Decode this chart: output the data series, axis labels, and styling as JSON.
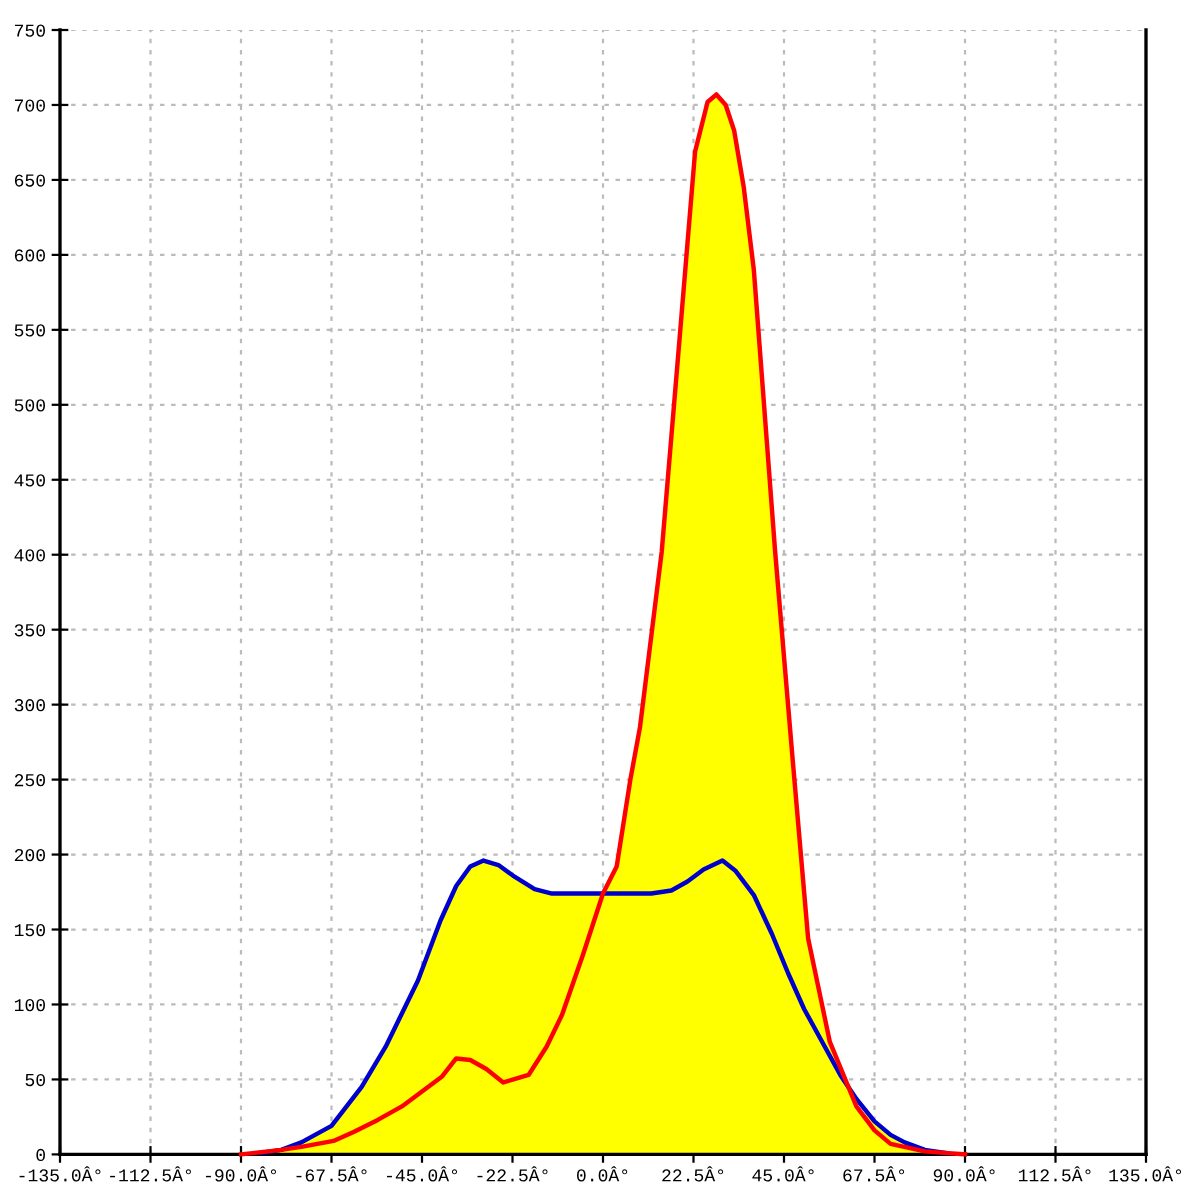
{
  "chart_data": {
    "type": "area",
    "series": [
      {
        "color": "#ffff00",
        "x": [
          -135,
          -90,
          -85,
          -80,
          -75,
          -67.5,
          -60,
          -54,
          -46,
          -40.4,
          -36.5,
          -33,
          -29.7,
          -26,
          -22.4,
          -17,
          -12.7,
          0,
          3.4,
          6.8,
          9.2,
          14.6,
          19,
          22.9,
          26,
          28.2,
          30.5,
          32.6,
          35,
          37.5,
          42.8,
          47.2,
          51,
          56.4,
          63,
          67.5,
          71.5,
          75,
          80,
          85,
          90,
          135
        ],
        "values": [
          0,
          0,
          1,
          3,
          8,
          19,
          45,
          72,
          116,
          156,
          179,
          192,
          196,
          193,
          186,
          177,
          174,
          174,
          192,
          250,
          285,
          402,
          543,
          669,
          702,
          707,
          700,
          683,
          645,
          590,
          402,
          262,
          144,
          75,
          32,
          22,
          13,
          8,
          3,
          1,
          0,
          0
        ]
      },
      {
        "type": "line",
        "color": "#0000cc",
        "x": [
          -85,
          -80,
          -75,
          -67.5,
          -60,
          -54,
          -46,
          -40.4,
          -36.5,
          -33,
          -29.7,
          -26,
          -22.4,
          -17,
          -12.7,
          0,
          12,
          17,
          21,
          25,
          29.7,
          33,
          37.5,
          42,
          46,
          50,
          54.5,
          59,
          63,
          67.5,
          71.5,
          75,
          80,
          85
        ],
        "values": [
          1,
          3,
          8,
          19,
          45,
          72,
          116,
          156,
          179,
          192,
          196,
          193,
          186,
          177,
          174,
          174,
          174,
          176,
          182,
          190,
          196,
          189,
          173,
          147,
          121,
          97,
          75,
          53,
          37,
          22,
          13,
          8,
          3,
          1
        ]
      },
      {
        "type": "line",
        "color": "#ff0000",
        "x": [
          -90,
          -86.6,
          -80,
          -75,
          -67,
          -62,
          -56,
          -50,
          -46,
          -40,
          -36.5,
          -33,
          -29,
          -24.8,
          -21,
          -18.5,
          -14,
          -10.2,
          -5,
          0,
          3.4,
          6.8,
          9.2,
          14.6,
          19,
          22.9,
          26,
          28.2,
          30.5,
          32.6,
          35,
          37.5,
          42.8,
          47.2,
          51,
          56.4,
          63,
          67.5,
          71.5,
          80,
          85,
          90
        ],
        "values": [
          0,
          1,
          3,
          5,
          9,
          15,
          23,
          32,
          40,
          52,
          64,
          63,
          57,
          48,
          51,
          53,
          72,
          93,
          133,
          174,
          192,
          250,
          285,
          402,
          543,
          669,
          702,
          707,
          700,
          683,
          645,
          590,
          402,
          262,
          144,
          75,
          32,
          16,
          7,
          2,
          1,
          0
        ]
      }
    ],
    "xlim": [
      -135,
      135
    ],
    "xticks": [
      {
        "value": -135,
        "label": "-135.0Â°"
      },
      {
        "value": -112.5,
        "label": "-112.5Â°"
      },
      {
        "value": -90,
        "label": "-90.0Â°"
      },
      {
        "value": -67.5,
        "label": "-67.5Â°"
      },
      {
        "value": -45,
        "label": "-45.0Â°"
      },
      {
        "value": -22.5,
        "label": "-22.5Â°"
      },
      {
        "value": 0,
        "label": "0.0Â°"
      },
      {
        "value": 22.5,
        "label": "22.5Â°"
      },
      {
        "value": 45,
        "label": "45.0Â°"
      },
      {
        "value": 67.5,
        "label": "67.5Â°"
      },
      {
        "value": 90,
        "label": "90.0Â°"
      },
      {
        "value": 112.5,
        "label": "112.5Â°"
      },
      {
        "value": 135,
        "label": "135.0Â°"
      }
    ],
    "ylim": [
      0,
      750
    ],
    "yticks": [
      0,
      50,
      100,
      150,
      200,
      250,
      300,
      350,
      400,
      450,
      500,
      550,
      600,
      650,
      700,
      750
    ],
    "grid": true,
    "marker": "none",
    "line_style": "solid"
  }
}
